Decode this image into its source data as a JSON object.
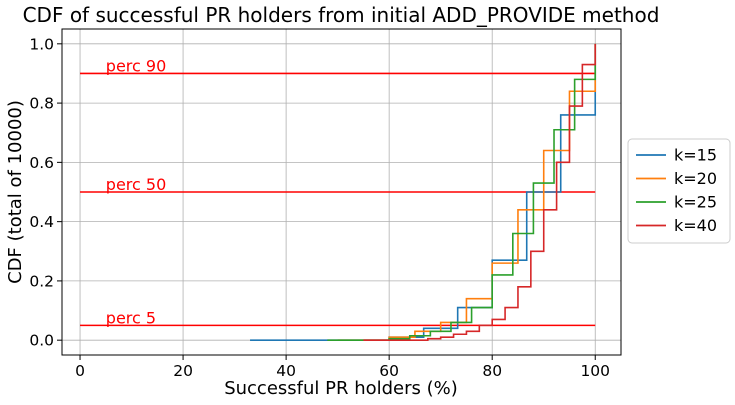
{
  "chart_data": {
    "type": "line",
    "step": true,
    "title": "CDF of successful PR holders from initial ADD_PROVIDE method",
    "xlabel": "Successful PR holders (%)",
    "ylabel": "CDF (total of 10000)",
    "xlim": [
      -3.5,
      105
    ],
    "ylim": [
      -0.05,
      1.05
    ],
    "xticks": [
      0,
      20,
      40,
      60,
      80,
      100
    ],
    "yticks": [
      0.0,
      0.2,
      0.4,
      0.6,
      0.8,
      1.0
    ],
    "xtick_labels": [
      "0",
      "20",
      "40",
      "60",
      "80",
      "100"
    ],
    "ytick_labels": [
      "0.0",
      "0.2",
      "0.4",
      "0.6",
      "0.8",
      "1.0"
    ],
    "grid": true,
    "legend_position": "center-right",
    "hlines": [
      {
        "y": 0.9,
        "x0": 0,
        "x1": 100,
        "label": "perc 90",
        "label_x": 5,
        "color": "#ff0000"
      },
      {
        "y": 0.5,
        "x0": 0,
        "x1": 100,
        "label": "perc 50",
        "label_x": 5,
        "color": "#ff0000"
      },
      {
        "y": 0.05,
        "x0": 0,
        "x1": 100,
        "label": "perc 5",
        "label_x": 5,
        "color": "#ff0000"
      }
    ],
    "series": [
      {
        "name": "k=15",
        "color": "#1f77b4",
        "x": [
          33,
          60,
          66.7,
          73.3,
          80,
          86.7,
          93.3,
          100
        ],
        "y": [
          0.0,
          0.01,
          0.04,
          0.11,
          0.27,
          0.5,
          0.76,
          1.0
        ]
      },
      {
        "name": "k=20",
        "color": "#ff7f0e",
        "x": [
          50,
          60,
          65,
          70,
          75,
          80,
          85,
          90,
          95,
          100
        ],
        "y": [
          0.0,
          0.01,
          0.03,
          0.06,
          0.14,
          0.26,
          0.44,
          0.64,
          0.84,
          1.0
        ]
      },
      {
        "name": "k=25",
        "color": "#2ca02c",
        "x": [
          48,
          60,
          64,
          68,
          72,
          76,
          80,
          84,
          88,
          92,
          96,
          100
        ],
        "y": [
          0.0,
          0.005,
          0.015,
          0.03,
          0.06,
          0.11,
          0.22,
          0.36,
          0.53,
          0.71,
          0.88,
          1.0
        ]
      },
      {
        "name": "k=40",
        "color": "#d62728",
        "x": [
          55,
          67.5,
          70,
          72.5,
          75,
          77.5,
          80,
          82.5,
          85,
          87.5,
          90,
          92.5,
          95,
          97.5,
          100
        ],
        "y": [
          0.0,
          0.005,
          0.01,
          0.02,
          0.03,
          0.05,
          0.07,
          0.11,
          0.18,
          0.3,
          0.44,
          0.6,
          0.79,
          0.93,
          1.0
        ]
      }
    ]
  }
}
